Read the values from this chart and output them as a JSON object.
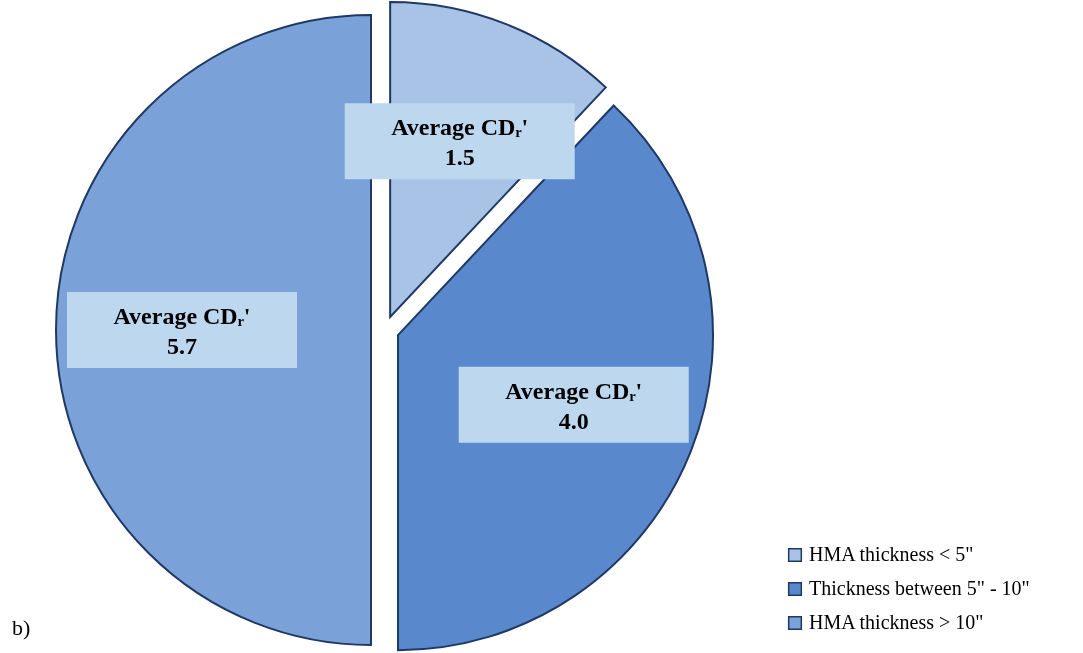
{
  "chart_data": {
    "type": "pie",
    "categories": [
      "HMA thickness < 5\"",
      "Thickness between 5\" - 10\"",
      "HMA thickness > 10\""
    ],
    "values": [
      12,
      38,
      50
    ],
    "colors": [
      "#a9c3e6",
      "#5a88cc",
      "#7aa1d8"
    ],
    "annotations": [
      "Average CDᵣ'\n1.5",
      "Average CDᵣ'\n4.0",
      "Average CDᵣ'\n5.7",
      "b)"
    ],
    "legend": "bottom right"
  }
}
